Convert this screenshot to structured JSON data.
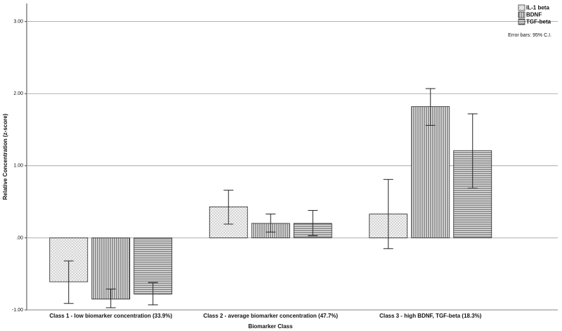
{
  "chart_data": {
    "type": "bar",
    "x_label": "Biomarker Class",
    "y_label": "Relative Concentration (z-score)",
    "note": "Error bars: 95% C.I.",
    "categories": [
      "Class 1 - low biomarker concentration (33.9%)",
      "Class 2 - average biomarker concentration (47.7%)",
      "Class 3 - high BDNF, TGF-beta (18.3%)"
    ],
    "series": [
      {
        "name": "IL-1 beta",
        "color": "#e6e6e6",
        "pattern": "dots",
        "values": [
          -0.61,
          0.43,
          0.33
        ],
        "ci_low": [
          -0.91,
          0.19,
          -0.15
        ],
        "ci_high": [
          -0.32,
          0.66,
          0.81
        ]
      },
      {
        "name": "BDNF",
        "color": "#d9d9d9",
        "pattern": "vertical",
        "values": [
          -0.85,
          0.2,
          1.82
        ],
        "ci_low": [
          -0.97,
          0.08,
          1.56
        ],
        "ci_high": [
          -0.71,
          0.33,
          2.07
        ]
      },
      {
        "name": "TGF-beta",
        "color": "#d9d9d9",
        "pattern": "horizontal",
        "values": [
          -0.78,
          0.2,
          1.21
        ],
        "ci_low": [
          -0.93,
          0.03,
          0.69
        ],
        "ci_high": [
          -0.62,
          0.38,
          1.72
        ]
      }
    ],
    "ylim": [
      -1,
      3.25
    ],
    "yticks": [
      {
        "value": -1,
        "label": "-1.00"
      },
      {
        "value": 0,
        "label": ".00"
      },
      {
        "value": 1,
        "label": "1.00"
      },
      {
        "value": 2,
        "label": "2.00"
      },
      {
        "value": 3,
        "label": "3.00"
      }
    ],
    "grid": true
  }
}
